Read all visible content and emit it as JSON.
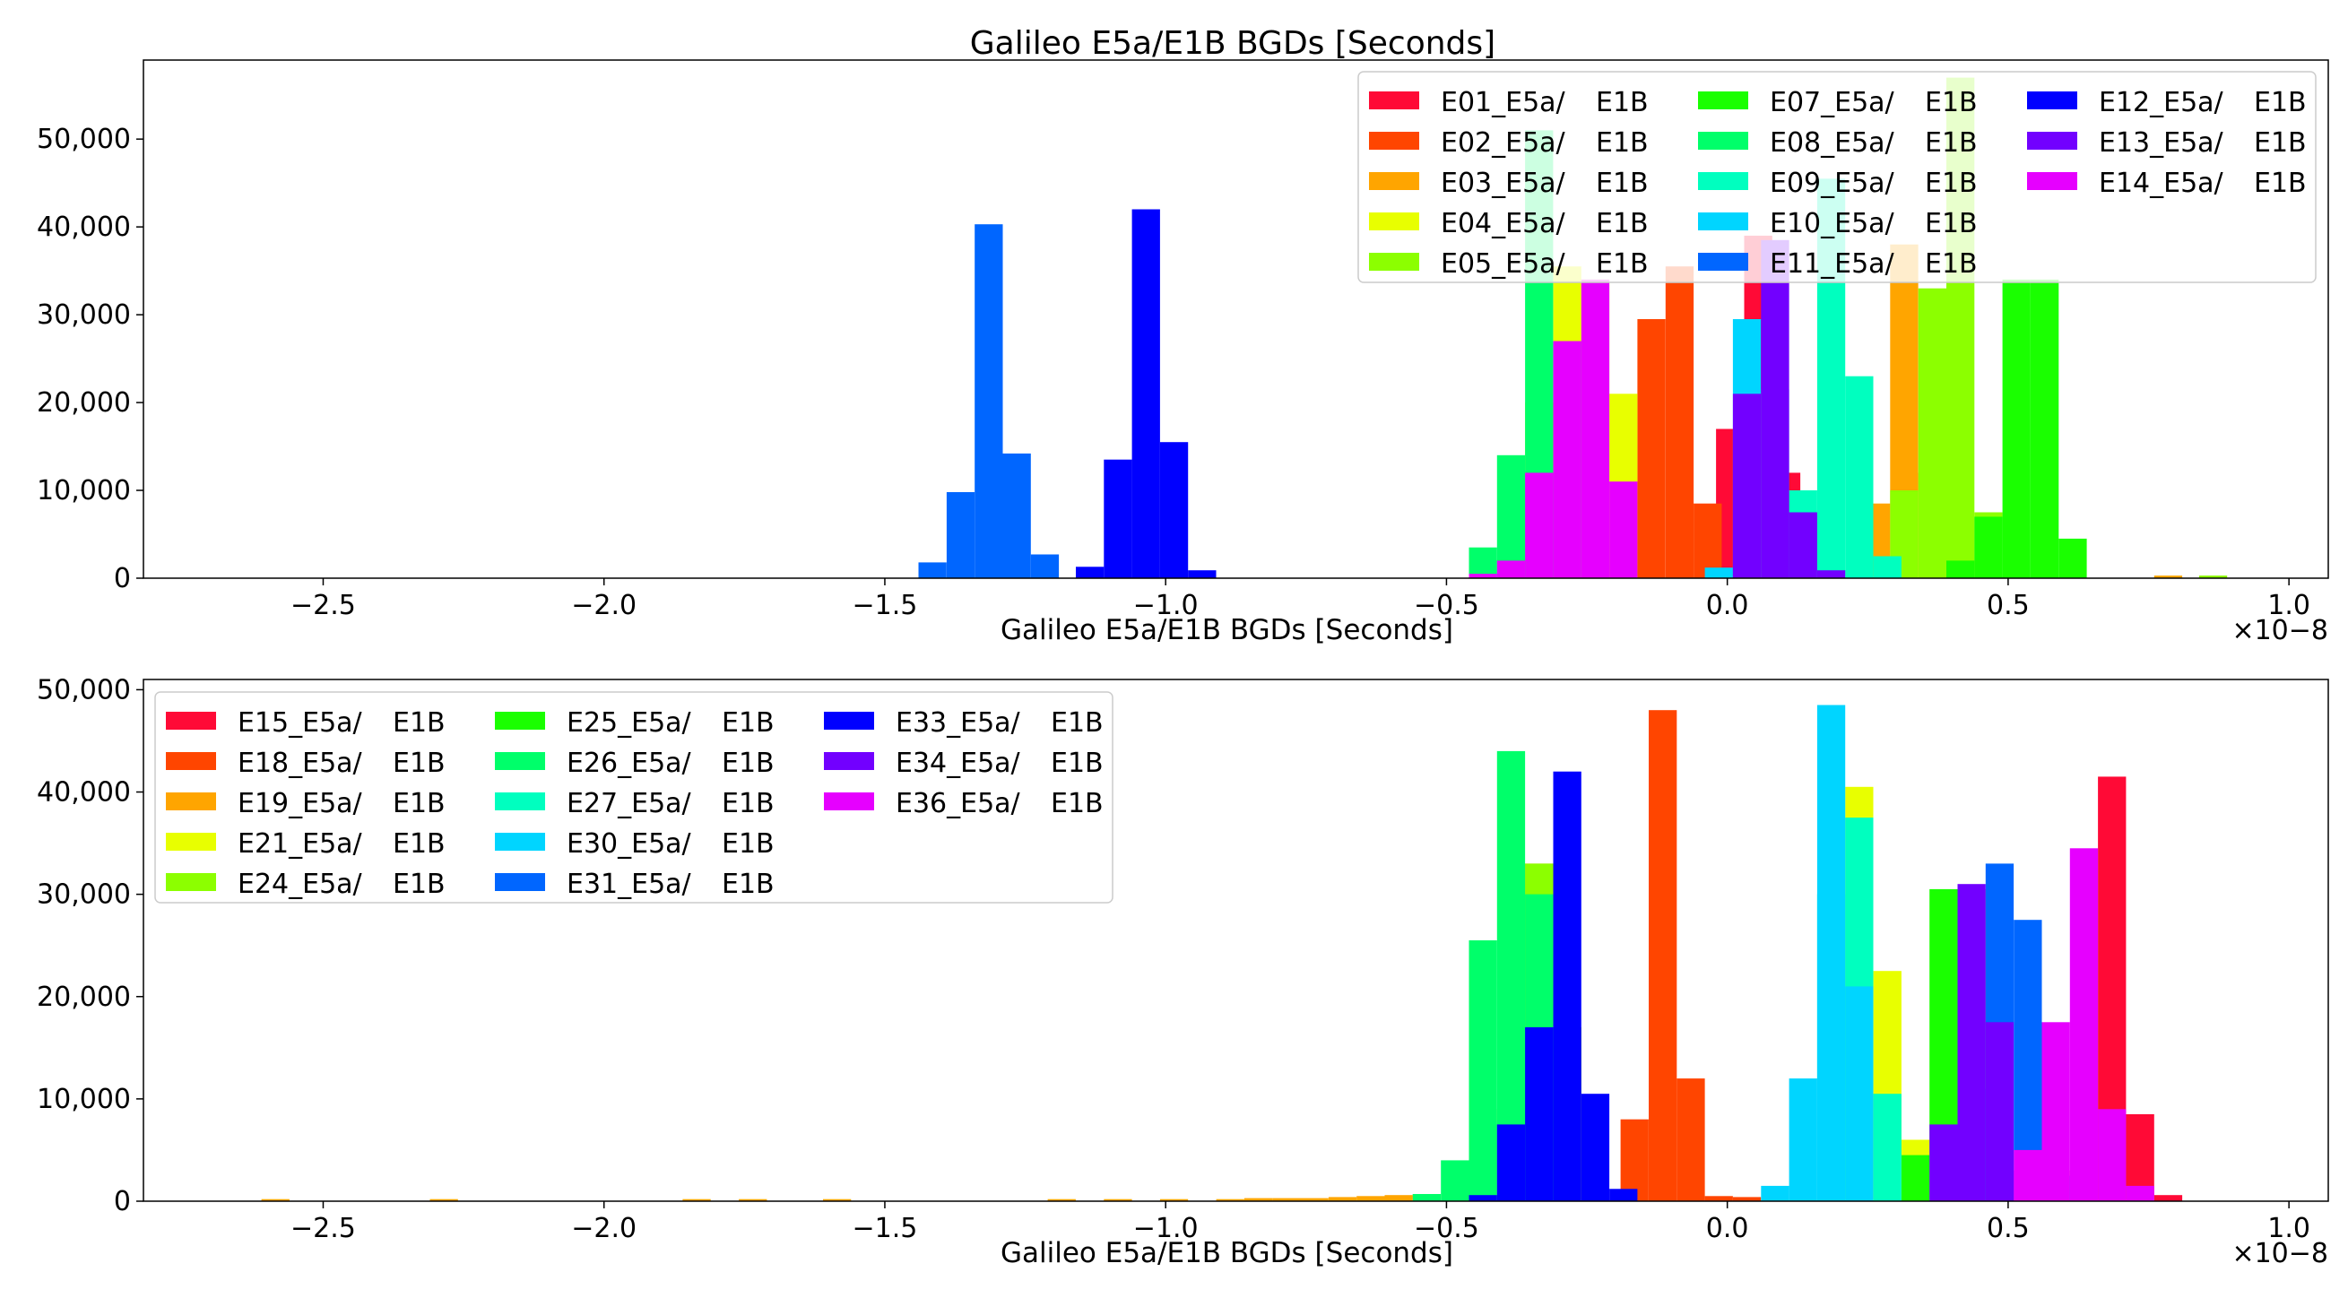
{
  "chart_data": [
    {
      "type": "bar",
      "title": "Galileo E5a/E1B BGDs [Seconds]",
      "xlabel": "Galileo E5a/E1B BGDs [Seconds]",
      "ylabel": "",
      "x_scale_label": "×10−8",
      "xlim": [
        -2.82,
        1.07
      ],
      "ylim": [
        0,
        59000
      ],
      "xticks": [
        -2.5,
        -2.0,
        -1.5,
        -1.0,
        -0.5,
        0.0,
        0.5,
        1.0
      ],
      "xtick_labels": [
        "−2.5",
        "−2.0",
        "−1.5",
        "−1.0",
        "−0.5",
        "0.0",
        "0.5",
        "1.0"
      ],
      "yticks": [
        0,
        10000,
        20000,
        30000,
        40000,
        50000
      ],
      "ytick_labels": [
        "0",
        "10,000",
        "20,000",
        "30,000",
        "40,000",
        "50,000"
      ],
      "legend_position": "top-right",
      "legend_columns": 3,
      "bin_width": 0.05,
      "series": [
        {
          "name": "E01_E5a/",
          "suffix": "E1B",
          "color": "#ff0a36",
          "bins": [
            [
              -0.02,
              17000
            ],
            [
              0.03,
              39000
            ],
            [
              0.08,
              12000
            ]
          ]
        },
        {
          "name": "E02_E5a/",
          "suffix": "E1B",
          "color": "#ff4500",
          "bins": [
            [
              -0.16,
              29500
            ],
            [
              -0.11,
              35500
            ],
            [
              -0.06,
              8500
            ],
            [
              -0.21,
              1500
            ]
          ]
        },
        {
          "name": "E03_E5a/",
          "suffix": "E1B",
          "color": "#ffa500",
          "bins": [
            [
              0.24,
              8500
            ],
            [
              0.29,
              38000
            ],
            [
              0.34,
              12000
            ],
            [
              0.76,
              300
            ]
          ]
        },
        {
          "name": "E04_E5a/",
          "suffix": "E1B",
          "color": "#e8ff00",
          "bins": [
            [
              -0.36,
              20000
            ],
            [
              -0.31,
              35500
            ],
            [
              -0.26,
              34000
            ],
            [
              -0.21,
              21000
            ]
          ]
        },
        {
          "name": "E05_E5a/",
          "suffix": "E1B",
          "color": "#8cff00",
          "bins": [
            [
              0.29,
              10000
            ],
            [
              0.34,
              33000
            ],
            [
              0.39,
              57000
            ],
            [
              0.44,
              7500
            ],
            [
              0.84,
              300
            ]
          ]
        },
        {
          "name": "E07_E5a/",
          "suffix": "E1B",
          "color": "#1aff00",
          "bins": [
            [
              0.44,
              7000
            ],
            [
              0.49,
              34000
            ],
            [
              0.54,
              34000
            ],
            [
              0.59,
              4500
            ],
            [
              0.39,
              2000
            ]
          ]
        },
        {
          "name": "E08_E5a/",
          "suffix": "E1B",
          "color": "#00ff6a",
          "bins": [
            [
              -0.46,
              3500
            ],
            [
              -0.41,
              14000
            ],
            [
              -0.36,
              51000
            ],
            [
              -0.31,
              27000
            ]
          ]
        },
        {
          "name": "E09_E5a/",
          "suffix": "E1B",
          "color": "#00ffbf",
          "bins": [
            [
              0.11,
              10000
            ],
            [
              0.16,
              45500
            ],
            [
              0.21,
              23000
            ],
            [
              0.26,
              2500
            ]
          ]
        },
        {
          "name": "E10_E5a/",
          "suffix": "E1B",
          "color": "#00d5ff",
          "bins": [
            [
              0.01,
              29500
            ],
            [
              0.06,
              21500
            ],
            [
              -0.04,
              1200
            ]
          ]
        },
        {
          "name": "E11_E5a/",
          "suffix": "E1B",
          "color": "#0066ff",
          "bins": [
            [
              -1.44,
              1800
            ],
            [
              -1.39,
              9800
            ],
            [
              -1.34,
              40300
            ],
            [
              -1.29,
              14200
            ],
            [
              -1.24,
              2700
            ]
          ]
        },
        {
          "name": "E12_E5a/",
          "suffix": "E1B",
          "color": "#0000ff",
          "bins": [
            [
              -1.16,
              1300
            ],
            [
              -1.11,
              13500
            ],
            [
              -1.06,
              42000
            ],
            [
              -1.01,
              15500
            ],
            [
              -0.96,
              900
            ]
          ]
        },
        {
          "name": "E13_E5a/",
          "suffix": "E1B",
          "color": "#7200ff",
          "bins": [
            [
              0.01,
              21000
            ],
            [
              0.06,
              38500
            ],
            [
              0.11,
              7500
            ],
            [
              0.16,
              900
            ]
          ]
        },
        {
          "name": "E14_E5a/",
          "suffix": "E1B",
          "color": "#e600ff",
          "bins": [
            [
              -0.41,
              2000
            ],
            [
              -0.36,
              12000
            ],
            [
              -0.31,
              27000
            ],
            [
              -0.26,
              34000
            ],
            [
              -0.21,
              11000
            ],
            [
              -0.46,
              500
            ]
          ]
        }
      ]
    },
    {
      "type": "bar",
      "title": "",
      "xlabel": "Galileo E5a/E1B BGDs [Seconds]",
      "ylabel": "",
      "x_scale_label": "×10−8",
      "xlim": [
        -2.82,
        1.07
      ],
      "ylim": [
        0,
        51000
      ],
      "xticks": [
        -2.5,
        -2.0,
        -1.5,
        -1.0,
        -0.5,
        0.0,
        0.5,
        1.0
      ],
      "xtick_labels": [
        "−2.5",
        "−2.0",
        "−1.5",
        "−1.0",
        "−0.5",
        "0.0",
        "0.5",
        "1.0"
      ],
      "yticks": [
        0,
        10000,
        20000,
        30000,
        40000,
        50000
      ],
      "ytick_labels": [
        "0",
        "10,000",
        "20,000",
        "30,000",
        "40,000",
        "50,000"
      ],
      "legend_position": "top-left",
      "legend_columns": 3,
      "bin_width": 0.05,
      "series": [
        {
          "name": "E15_E5a/",
          "suffix": "E1B",
          "color": "#ff0a36",
          "bins": [
            [
              0.66,
              41500
            ],
            [
              0.71,
              8500
            ],
            [
              0.76,
              600
            ],
            [
              0.61,
              3000
            ]
          ]
        },
        {
          "name": "E18_E5a/",
          "suffix": "E1B",
          "color": "#ff4500",
          "bins": [
            [
              -0.19,
              8000
            ],
            [
              -0.14,
              48000
            ],
            [
              -0.09,
              12000
            ],
            [
              -0.04,
              500
            ],
            [
              0.01,
              400
            ]
          ]
        },
        {
          "name": "E19_E5a/",
          "suffix": "E1B",
          "color": "#ffa500",
          "bins": [
            [
              -0.36,
              33000
            ],
            [
              -0.31,
              17000
            ],
            [
              -0.56,
              700
            ],
            [
              -0.61,
              600
            ],
            [
              -0.66,
              500
            ],
            [
              -0.71,
              400
            ],
            [
              -0.76,
              300
            ],
            [
              -0.81,
              300
            ],
            [
              -0.86,
              300
            ],
            [
              -0.91,
              200
            ],
            [
              -1.01,
              200
            ],
            [
              -1.11,
              200
            ],
            [
              -1.21,
              200
            ],
            [
              -1.61,
              200
            ],
            [
              -1.76,
              200
            ],
            [
              -1.86,
              200
            ],
            [
              -2.31,
              200
            ],
            [
              -2.61,
              200
            ]
          ]
        },
        {
          "name": "E21_E5a/",
          "suffix": "E1B",
          "color": "#e8ff00",
          "bins": [
            [
              0.21,
              40500
            ],
            [
              0.26,
              22500
            ],
            [
              0.31,
              6000
            ]
          ]
        },
        {
          "name": "E24_E5a/",
          "suffix": "E1B",
          "color": "#8cff00",
          "bins": [
            [
              -0.36,
              33000
            ],
            [
              -0.31,
              17000
            ],
            [
              -0.41,
              9000
            ]
          ]
        },
        {
          "name": "E25_E5a/",
          "suffix": "E1B",
          "color": "#1aff00",
          "bins": [
            [
              0.31,
              4500
            ],
            [
              0.36,
              30500
            ],
            [
              0.41,
              30500
            ]
          ]
        },
        {
          "name": "E26_E5a/",
          "suffix": "E1B",
          "color": "#00ff6a",
          "bins": [
            [
              -0.51,
              4000
            ],
            [
              -0.46,
              25500
            ],
            [
              -0.41,
              44000
            ],
            [
              -0.36,
              30000
            ],
            [
              -0.56,
              700
            ]
          ]
        },
        {
          "name": "E27_E5a/",
          "suffix": "E1B",
          "color": "#00ffbf",
          "bins": [
            [
              0.16,
              30000
            ],
            [
              0.21,
              37500
            ],
            [
              0.26,
              10500
            ]
          ]
        },
        {
          "name": "E30_E5a/",
          "suffix": "E1B",
          "color": "#00d5ff",
          "bins": [
            [
              0.06,
              1500
            ],
            [
              0.11,
              12000
            ],
            [
              0.16,
              48500
            ],
            [
              0.21,
              21000
            ]
          ]
        },
        {
          "name": "E31_E5a/",
          "suffix": "E1B",
          "color": "#0066ff",
          "bins": [
            [
              0.46,
              33000
            ],
            [
              0.51,
              27500
            ],
            [
              0.56,
              2500
            ],
            [
              0.41,
              11000
            ]
          ]
        },
        {
          "name": "E33_E5a/",
          "suffix": "E1B",
          "color": "#0000ff",
          "bins": [
            [
              -0.46,
              600
            ],
            [
              -0.41,
              7500
            ],
            [
              -0.36,
              17000
            ],
            [
              -0.31,
              42000
            ],
            [
              -0.26,
              10500
            ],
            [
              -0.21,
              1200
            ]
          ]
        },
        {
          "name": "E34_E5a/",
          "suffix": "E1B",
          "color": "#7200ff",
          "bins": [
            [
              0.36,
              7500
            ],
            [
              0.41,
              31000
            ],
            [
              0.46,
              17500
            ],
            [
              0.51,
              3000
            ]
          ]
        },
        {
          "name": "E36_E5a/",
          "suffix": "E1B",
          "color": "#e600ff",
          "bins": [
            [
              0.56,
              17500
            ],
            [
              0.61,
              34500
            ],
            [
              0.66,
              9000
            ],
            [
              0.51,
              5000
            ],
            [
              0.71,
              1500
            ]
          ]
        }
      ]
    }
  ]
}
